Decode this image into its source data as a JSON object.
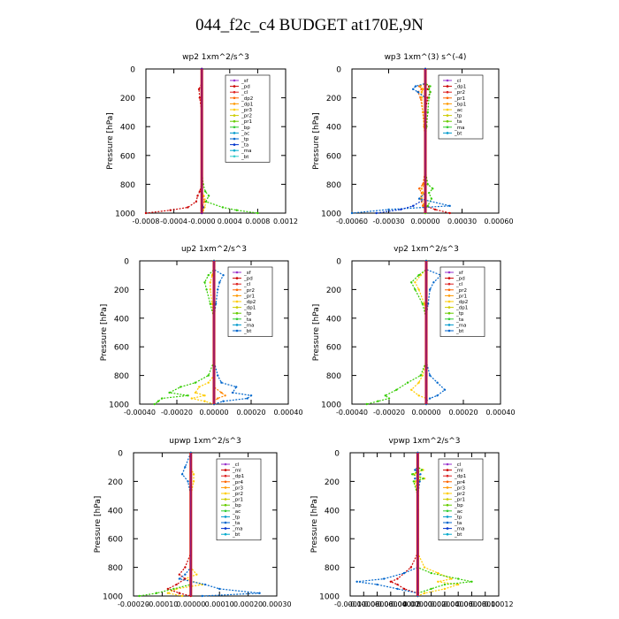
{
  "figure": {
    "title": "044_f2c_c4  BUDGET at170E,9N"
  },
  "chart_data": [
    {
      "type": "line",
      "title": "wp2   1xm^2/s^3",
      "ylabel": "Pressure  [hPa]",
      "ylim": [
        1000,
        0
      ],
      "xlim": [
        -0.0008,
        0.0012
      ],
      "xticks": [
        -0.0008,
        -0.0004,
        0.0,
        0.0004,
        0.0008,
        0.0012
      ],
      "xticklabels": [
        "-0.0008",
        "-0.0004",
        "-0.0000",
        "0.0004",
        "0.0008",
        "0.0012"
      ],
      "yticks": [
        0,
        200,
        400,
        600,
        800,
        1000
      ],
      "legend": [
        "_sf",
        "_pd",
        "_cl",
        "_dp2",
        "_dp1",
        "_pr3",
        "_pr2",
        "_pr1",
        "_bp",
        "_ac",
        "_tp",
        "_ta",
        "_ma",
        "_bt"
      ],
      "pressure": [
        0,
        100,
        140,
        200,
        300,
        400,
        500,
        600,
        700,
        800,
        850,
        880,
        920,
        960,
        980,
        1000
      ],
      "series": [
        {
          "name": "_pd",
          "color": "#cc0000",
          "values": [
            0,
            0,
            -4e-05,
            -3e-05,
            0,
            0,
            0,
            0,
            0,
            0,
            -3e-05,
            -6e-05,
            -8e-05,
            -0.0002,
            -0.00045,
            -0.0008
          ]
        },
        {
          "name": "_dp1",
          "color": "#ff6600",
          "values": [
            0,
            0,
            0,
            0,
            0,
            0,
            0,
            0,
            0,
            0,
            0,
            2e-05,
            4e-05,
            0,
            0,
            0
          ]
        },
        {
          "name": "_pr1",
          "color": "#ffcc00",
          "values": [
            0,
            0,
            0,
            0,
            0,
            0,
            0,
            0,
            0,
            0,
            0,
            3e-05,
            6e-05,
            4e-05,
            2e-05,
            0
          ]
        },
        {
          "name": "_bp",
          "color": "#33cc00",
          "values": [
            0,
            0,
            0,
            0,
            0,
            0,
            0,
            0,
            0,
            2e-05,
            5e-05,
            0.0001,
            6e-05,
            0.0003,
            0.0005,
            0.0008
          ]
        },
        {
          "name": "_ta",
          "color": "#0033cc",
          "values": [
            0,
            0,
            0,
            0,
            0,
            0,
            0,
            0,
            0,
            0,
            0,
            0,
            0,
            2e-05,
            0,
            0
          ]
        },
        {
          "name": "_sf",
          "color": "#6600aa",
          "values": [
            0,
            0,
            0,
            0,
            0,
            0,
            0,
            0,
            0,
            0,
            0,
            0,
            0,
            0,
            0,
            0
          ]
        }
      ]
    },
    {
      "type": "line",
      "title": "wp3   1xm^(3) s^(-4)",
      "ylabel": "Pressure  [hPa]",
      "ylim": [
        1000,
        0
      ],
      "xlim": [
        -0.0006,
        0.0006
      ],
      "xticks": [
        -0.0006,
        -0.0003,
        0.0,
        0.0003,
        0.0006
      ],
      "xticklabels": [
        "-0.00060",
        "-0.00030",
        "0.00000",
        "0.00030",
        "0.00060"
      ],
      "yticks": [
        0,
        200,
        400,
        600,
        800,
        1000
      ],
      "legend": [
        "_cl",
        "_dp1",
        "_pr2",
        "_pr1",
        "_bp1",
        "_ac",
        "_tp",
        "_ta",
        "_ma",
        "_bt"
      ],
      "pressure": [
        0,
        100,
        120,
        140,
        160,
        200,
        300,
        400,
        500,
        600,
        700,
        800,
        830,
        860,
        900,
        950,
        975,
        1000
      ],
      "series": [
        {
          "name": "_cl",
          "color": "#cc0000",
          "values": [
            0,
            0,
            3e-05,
            2e-05,
            4e-05,
            2e-05,
            0,
            0,
            0,
            0,
            0,
            0,
            0,
            0,
            0,
            0,
            8e-05,
            0.0002
          ]
        },
        {
          "name": "_dp1",
          "color": "#ff6600",
          "values": [
            0,
            0,
            -5e-05,
            -3e-05,
            -6e-05,
            -4e-05,
            -2e-05,
            -1e-05,
            0,
            0,
            0,
            -2e-05,
            -5e-05,
            -3e-05,
            -4e-05,
            -2e-05,
            0,
            0
          ]
        },
        {
          "name": "_pr2",
          "color": "#ffaa00",
          "values": [
            0,
            0,
            -4e-05,
            -2e-05,
            -3e-05,
            -3e-05,
            -2e-05,
            -1e-05,
            0,
            0,
            0,
            -1e-05,
            -3e-05,
            -2e-05,
            -3e-05,
            -1e-05,
            0,
            0
          ]
        },
        {
          "name": "_ac",
          "color": "#33cc00",
          "values": [
            0,
            0,
            4e-05,
            3e-05,
            4e-05,
            3e-05,
            2e-05,
            1e-05,
            0,
            0,
            0,
            2e-05,
            6e-05,
            3e-05,
            5e-05,
            2e-05,
            0,
            0
          ]
        },
        {
          "name": "_tp",
          "color": "#0066cc",
          "values": [
            0,
            0,
            -8e-05,
            -0.0001,
            -6e-05,
            0,
            0,
            0,
            0,
            0,
            0,
            0,
            0,
            0,
            -5e-05,
            0.0002,
            -0.0003,
            -0.0006
          ]
        },
        {
          "name": "_ma",
          "color": "#0033cc",
          "values": [
            0,
            0,
            0,
            0,
            0,
            0,
            0,
            0,
            0,
            0,
            0,
            0,
            0,
            0,
            0,
            -0.0001,
            -0.0002,
            -0.0004
          ]
        }
      ]
    },
    {
      "type": "line",
      "title": "up2   1xm^2/s^3",
      "ylabel": "Pressure  [hPa]",
      "ylim": [
        1000,
        0
      ],
      "xlim": [
        -0.0004,
        0.0004
      ],
      "xticks": [
        -0.0004,
        -0.0002,
        0.0,
        0.0002,
        0.0004
      ],
      "xticklabels": [
        "-0.00040",
        "-0.00020",
        "0.00000",
        "0.00020",
        "0.00040"
      ],
      "yticks": [
        0,
        200,
        400,
        600,
        800,
        1000
      ],
      "legend": [
        "_sf",
        "_pd",
        "_cl",
        "_pr2",
        "_pr1",
        "_dp2",
        "_dp1",
        "_tp",
        "_ta",
        "_ma",
        "_bt"
      ],
      "pressure": [
        0,
        60,
        100,
        150,
        200,
        300,
        400,
        500,
        600,
        700,
        800,
        850,
        880,
        920,
        940,
        960,
        980,
        1000
      ],
      "series": [
        {
          "name": "_pd",
          "color": "#cc0000",
          "values": [
            0,
            0,
            0,
            0,
            0,
            0,
            0,
            0,
            0,
            0,
            0,
            0,
            0,
            0,
            0,
            0,
            0,
            0
          ]
        },
        {
          "name": "_pr2",
          "color": "#ffcc00",
          "values": [
            0,
            0,
            -1e-05,
            -2e-05,
            -2e-05,
            -1e-05,
            0,
            0,
            0,
            0,
            0,
            -3e-05,
            -8e-05,
            -0.0001,
            -5e-05,
            -0.00012,
            -5e-05,
            0
          ]
        },
        {
          "name": "_dp2",
          "color": "#33cc00",
          "values": [
            0,
            0,
            -3e-05,
            -5e-05,
            -4e-05,
            -2e-05,
            0,
            0,
            0,
            0,
            -3e-05,
            -0.0001,
            -0.00018,
            -0.00024,
            -0.00014,
            -0.00028,
            -0.0003,
            -0.00032
          ]
        },
        {
          "name": "_dp1",
          "color": "#ff8800",
          "values": [
            0,
            0,
            0,
            0,
            0,
            0,
            0,
            0,
            0,
            0,
            0,
            0,
            0,
            4e-05,
            6e-05,
            2e-05,
            0,
            0
          ]
        },
        {
          "name": "_tp",
          "color": "#0066cc",
          "values": [
            0,
            0,
            5e-05,
            3e-05,
            2e-05,
            1e-05,
            0,
            0,
            0,
            0,
            2e-05,
            4e-05,
            0.00012,
            0.0001,
            0.0002,
            0.00018,
            5e-05,
            0
          ]
        }
      ]
    },
    {
      "type": "line",
      "title": "vp2   1xm^2/s^3",
      "ylabel": "Pressure  [hPa]",
      "ylim": [
        1000,
        0
      ],
      "xlim": [
        -0.0004,
        0.0004
      ],
      "xticks": [
        -0.0004,
        -0.0002,
        0.0,
        0.0002,
        0.0004
      ],
      "xticklabels": [
        "-0.00040",
        "-0.00020",
        "0.00000",
        "0.00020",
        "0.00040"
      ],
      "yticks": [
        0,
        200,
        400,
        600,
        800,
        1000
      ],
      "legend": [
        "_sf",
        "_pd",
        "_cl",
        "_pr2",
        "_pr1",
        "_dp2",
        "_dp1",
        "_tp",
        "_ta",
        "_ma",
        "_bt"
      ],
      "pressure": [
        0,
        60,
        100,
        150,
        200,
        300,
        400,
        500,
        600,
        700,
        800,
        850,
        900,
        940,
        960,
        980,
        1000
      ],
      "series": [
        {
          "name": "_pd",
          "color": "#cc0000",
          "values": [
            0,
            0,
            0,
            0,
            0,
            0,
            0,
            0,
            0,
            0,
            0,
            0,
            0,
            0,
            0,
            0,
            0
          ]
        },
        {
          "name": "_pr2",
          "color": "#ffcc00",
          "values": [
            0,
            0,
            -3e-05,
            -6e-05,
            -4e-05,
            -1e-05,
            0,
            0,
            0,
            0,
            -2e-05,
            -4e-05,
            -8e-05,
            -4e-05,
            0,
            0,
            0
          ]
        },
        {
          "name": "_dp2",
          "color": "#33cc00",
          "values": [
            0,
            0,
            -4e-05,
            -8e-05,
            -6e-05,
            -2e-05,
            0,
            0,
            0,
            0,
            -3e-05,
            -0.0001,
            -0.00016,
            -0.00022,
            -0.0002,
            -0.00026,
            -0.00032
          ]
        },
        {
          "name": "_tp",
          "color": "#0066cc",
          "values": [
            0,
            0,
            8e-05,
            4e-05,
            2e-05,
            1e-05,
            0,
            0,
            0,
            0,
            2e-05,
            6e-05,
            0.0001,
            6e-05,
            2e-05,
            0,
            0
          ]
        }
      ]
    },
    {
      "type": "line",
      "title": "upwp   1xm^2/s^3",
      "ylabel": "Pressure  [hPa]",
      "ylim": [
        1000,
        0
      ],
      "xlim": [
        -0.0002,
        0.0003
      ],
      "xticks": [
        -0.0002,
        -0.0001,
        0.0,
        0.0001,
        0.0002,
        0.0003
      ],
      "xticklabels": [
        "-0.00020",
        "-0.00010",
        "0.00000",
        "0.00010",
        "0.00020",
        "0.00030"
      ],
      "yticks": [
        0,
        200,
        400,
        600,
        800,
        1000
      ],
      "legend": [
        "_cl",
        "_ml",
        "_dp1",
        "_pr4",
        "_pr3",
        "_pr2",
        "_pr1",
        "_bp",
        "_ac",
        "_tp",
        "_ta",
        "_ma",
        "_bt"
      ],
      "pressure": [
        0,
        100,
        150,
        200,
        300,
        400,
        500,
        600,
        700,
        800,
        850,
        880,
        920,
        950,
        980,
        1000
      ],
      "series": [
        {
          "name": "_pr1",
          "color": "#ffcc00",
          "values": [
            0,
            0,
            1e-05,
            1e-05,
            0,
            0,
            0,
            0,
            0,
            0,
            2e-05,
            -2e-05,
            4e-05,
            -5e-05,
            -8e-05,
            -3e-05
          ]
        },
        {
          "name": "_dp1",
          "color": "#cc0000",
          "values": [
            0,
            0,
            0,
            0,
            0,
            0,
            0,
            0,
            0,
            -2e-05,
            -4e-05,
            -2e-05,
            -5e-05,
            -8e-05,
            -4e-05,
            0
          ]
        },
        {
          "name": "_ac",
          "color": "#33cc00",
          "values": [
            0,
            0,
            0,
            0,
            0,
            0,
            0,
            0,
            0,
            0,
            0,
            0,
            0,
            -6e-05,
            -0.00012,
            -0.00018
          ]
        },
        {
          "name": "_tp",
          "color": "#0066cc",
          "values": [
            0,
            -2e-05,
            -3e-05,
            -1e-05,
            0,
            0,
            0,
            0,
            0,
            0,
            -2e-05,
            -4e-05,
            5e-05,
            0.0001,
            0.00024,
            4e-05
          ]
        }
      ]
    },
    {
      "type": "line",
      "title": "vpwp   1xm^2/s^3",
      "ylabel": "Pressure  [hPa]",
      "ylim": [
        1000,
        0
      ],
      "xlim": [
        -0.0001,
        0.00012
      ],
      "xticks": [
        -0.0001,
        -8e-05,
        -6e-05,
        -4e-05,
        -2e-05,
        0.0,
        2e-05,
        4e-05,
        6e-05,
        8e-05,
        0.0001,
        0.00012
      ],
      "xticklabels": [
        "-0.00010",
        "-0.00008",
        "-0.00006",
        "-0.00004",
        "-0.00002",
        "0.00000",
        "0.00002",
        "0.00004",
        "0.00006",
        "0.00008",
        "0.00010",
        "0.00012"
      ],
      "yticks": [
        0,
        200,
        400,
        600,
        800,
        1000
      ],
      "legend": [
        "_cl",
        "_ml",
        "_dp1",
        "_pr4",
        "_pr3",
        "_pr2",
        "_pr1",
        "_bp",
        "_ac",
        "_tp",
        "_ta",
        "_ma",
        "_bt"
      ],
      "pressure": [
        0,
        100,
        120,
        150,
        180,
        200,
        300,
        400,
        500,
        600,
        700,
        800,
        840,
        880,
        900,
        920,
        950,
        980,
        1000
      ],
      "series": [
        {
          "name": "_pr1",
          "color": "#ffcc00",
          "values": [
            0,
            0,
            8e-06,
            -6e-06,
            1e-05,
            -4e-06,
            0,
            0,
            0,
            0,
            0,
            1e-05,
            3e-05,
            5e-05,
            3e-05,
            6e-05,
            4e-05,
            1e-05,
            0
          ]
        },
        {
          "name": "_ac",
          "color": "#33cc00",
          "values": [
            0,
            0,
            6e-06,
            -8e-06,
            8e-06,
            -6e-06,
            0,
            0,
            0,
            0,
            0,
            0,
            2e-05,
            6e-05,
            8e-05,
            4e-05,
            2e-05,
            0,
            0
          ]
        },
        {
          "name": "_dp1",
          "color": "#cc0000",
          "values": [
            0,
            0,
            0,
            0,
            0,
            0,
            0,
            0,
            0,
            0,
            0,
            -1e-05,
            -2e-05,
            -3e-05,
            -4e-05,
            -3e-05,
            -2e-05,
            0,
            0
          ]
        },
        {
          "name": "_tp",
          "color": "#0066cc",
          "values": [
            0,
            0,
            -4e-06,
            4e-06,
            -4e-06,
            3e-06,
            0,
            0,
            0,
            0,
            0,
            0,
            -2e-05,
            -5e-05,
            -9e-05,
            -6e-05,
            -3e-05,
            0,
            0
          ]
        }
      ]
    }
  ]
}
